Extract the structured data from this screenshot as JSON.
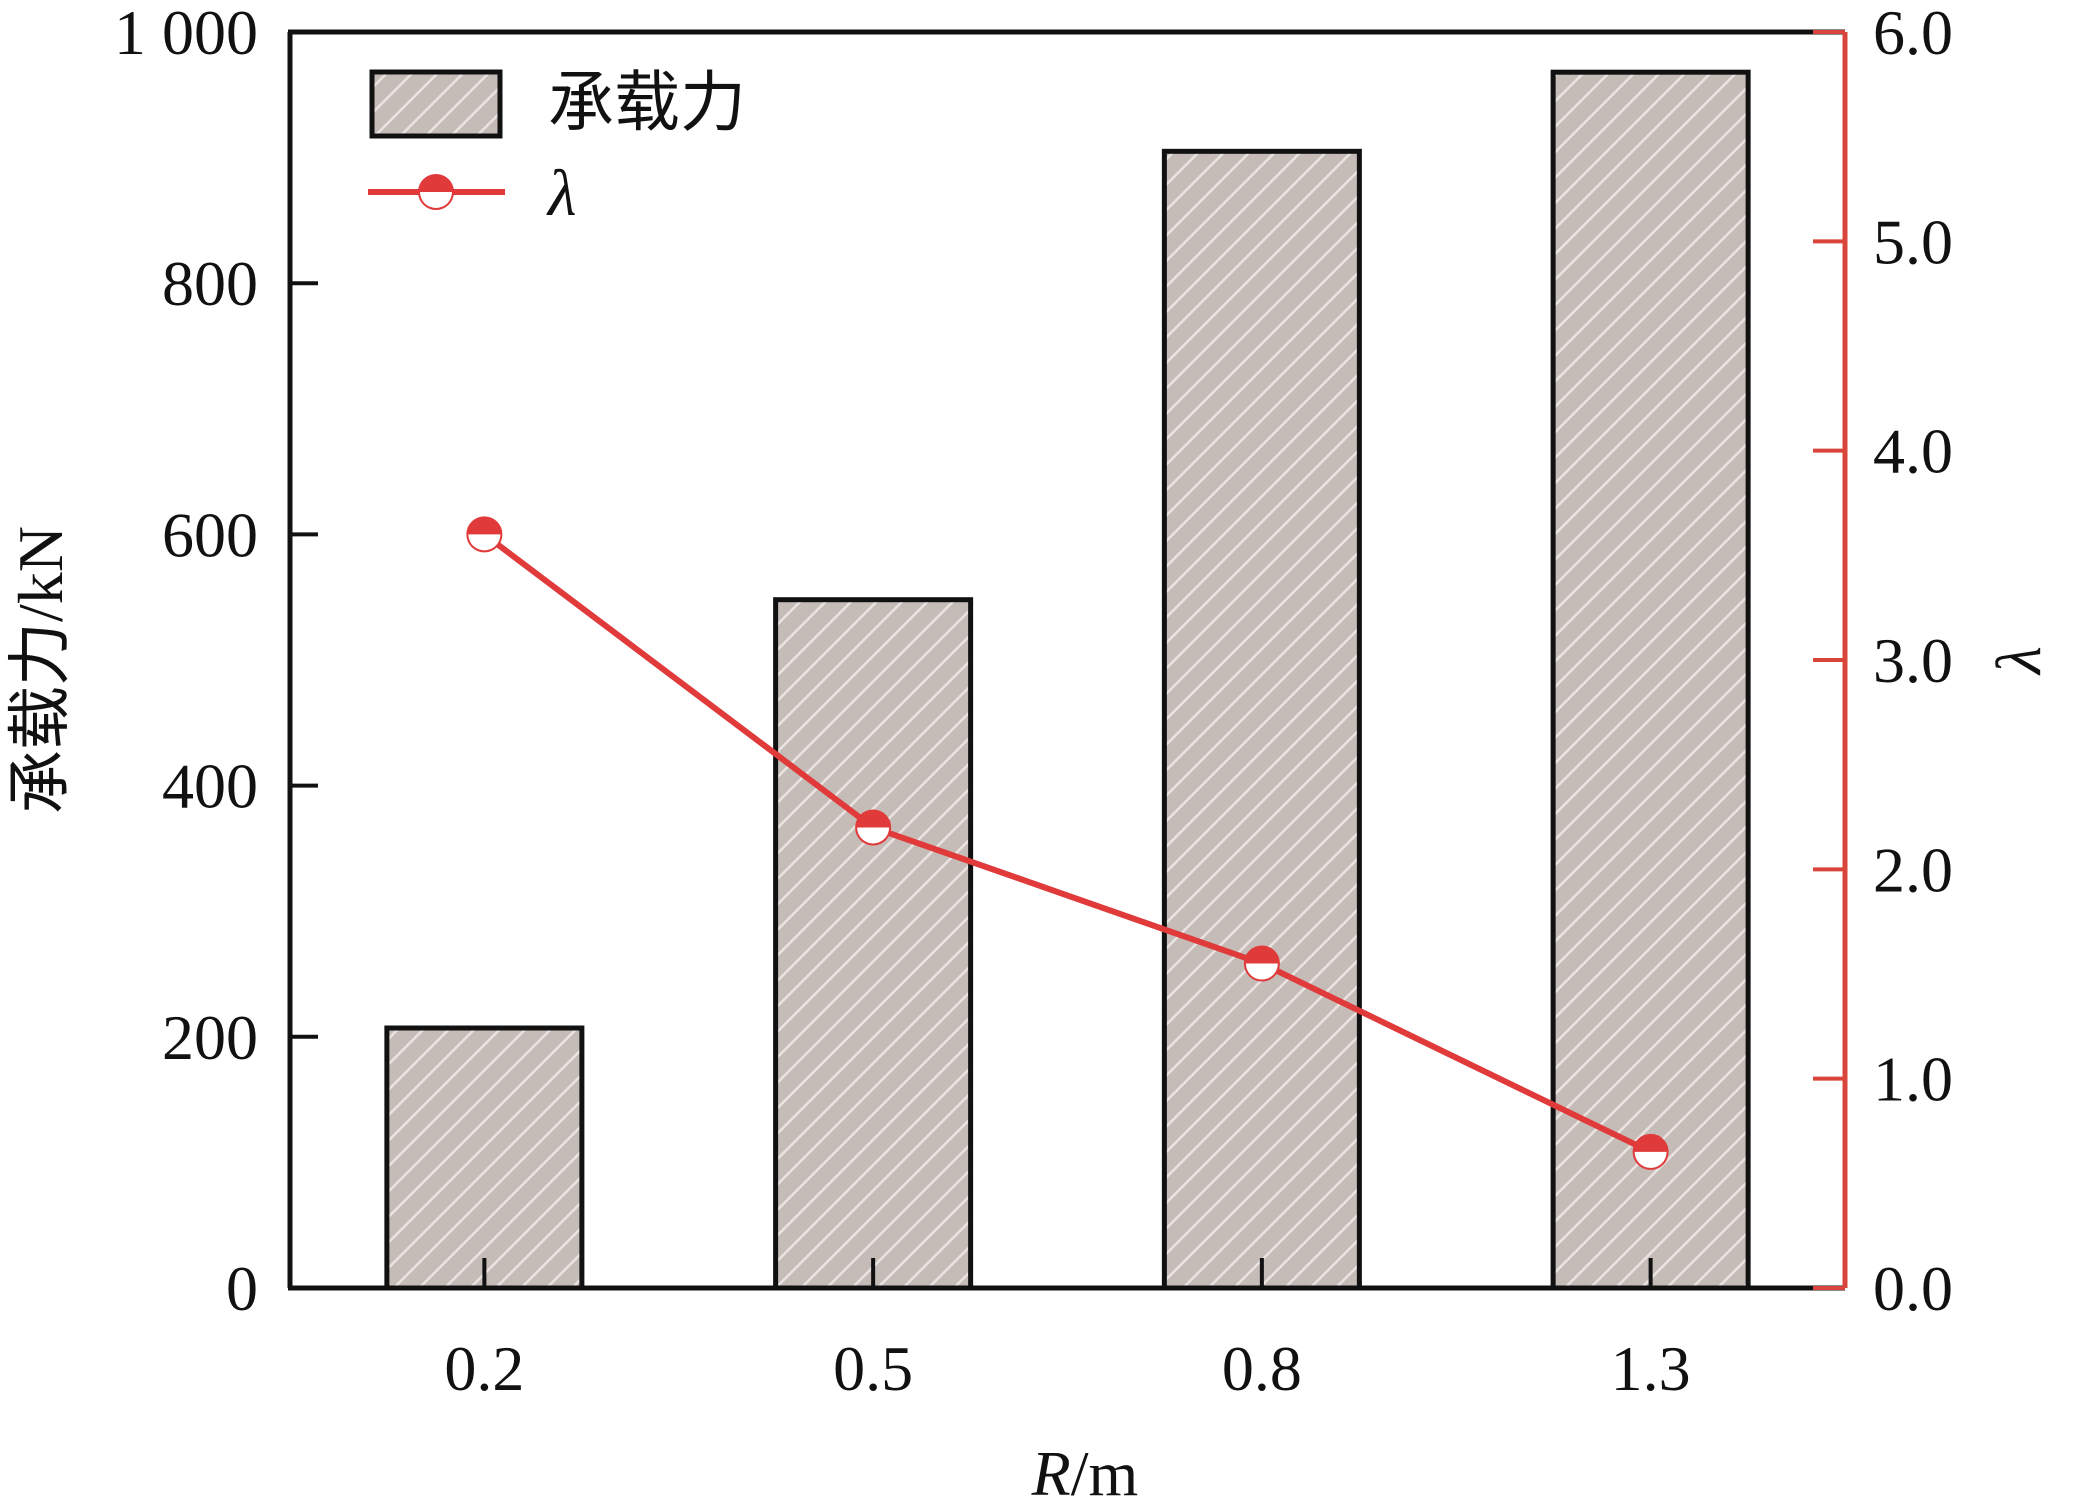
{
  "chart_data": {
    "type": "bar",
    "categories": [
      "0.2",
      "0.5",
      "0.8",
      "1.3"
    ],
    "series": [
      {
        "name": "承载力",
        "type": "bar",
        "axis": "left",
        "values": [
          207,
          548,
          905,
          968
        ]
      },
      {
        "name": "λ",
        "type": "line",
        "axis": "right",
        "values": [
          3.6,
          2.2,
          1.55,
          0.65
        ]
      }
    ],
    "xlabel_var": "R",
    "xlabel_unit": "/m",
    "ylabel_left": "承载力/kN",
    "ylabel_right": "λ",
    "ylim_left": [
      0,
      1000
    ],
    "ylim_right": [
      0,
      6
    ],
    "left_ticks": [
      "0",
      "200",
      "400",
      "600",
      "800",
      "1 000"
    ],
    "right_ticks": [
      "0.0",
      "1.0",
      "2.0",
      "3.0",
      "4.0",
      "5.0",
      "6.0"
    ],
    "legend_position": "top-left",
    "colors": {
      "bar_fill": "#c5bcb8",
      "bar_hatch": "#e9e4e2",
      "bar_edge": "#111111",
      "line": "#e03a3a",
      "right_axis": "#d9453a"
    }
  }
}
